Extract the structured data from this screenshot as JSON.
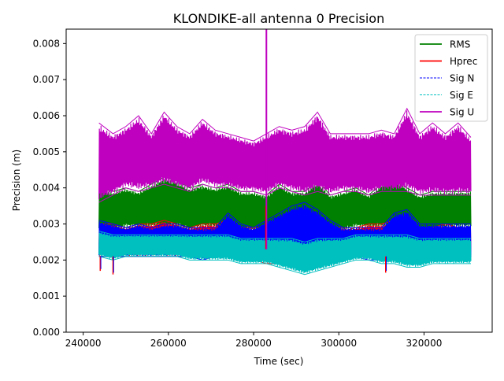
{
  "chart_data": {
    "type": "line",
    "title": "KLONDIKE-all antenna 0 Precision",
    "xlabel": "Time (sec)",
    "ylabel": "Precision (m)",
    "xlim": [
      236000,
      336000
    ],
    "ylim": [
      0,
      0.0084
    ],
    "xticks": [
      240000,
      260000,
      280000,
      300000,
      320000
    ],
    "xtick_labels": [
      "240000",
      "260000",
      "280000",
      "300000",
      "320000"
    ],
    "yticks": [
      0,
      0.001,
      0.002,
      0.003,
      0.004,
      0.005,
      0.006,
      0.007,
      0.008
    ],
    "ytick_labels": [
      "0.000",
      "0.001",
      "0.002",
      "0.003",
      "0.004",
      "0.005",
      "0.006",
      "0.007",
      "0.008"
    ],
    "grid": false,
    "legend_position": "top-right",
    "x": [
      243700,
      247000,
      250000,
      253000,
      256000,
      259000,
      262000,
      265000,
      268000,
      271000,
      274000,
      277000,
      280000,
      283000,
      286000,
      289000,
      292000,
      295000,
      298000,
      301000,
      304000,
      307000,
      310000,
      313000,
      316000,
      319000,
      322000,
      325000,
      328000,
      331000
    ],
    "series": [
      {
        "name": "RMS",
        "color": "#008000",
        "style": "solid",
        "upper": [
          0.004,
          0.0039,
          0.004,
          0.0039,
          0.0041,
          0.0043,
          0.0042,
          0.004,
          0.0041,
          0.004,
          0.0041,
          0.0039,
          0.0039,
          0.0038,
          0.0041,
          0.0039,
          0.0039,
          0.0042,
          0.0038,
          0.0039,
          0.004,
          0.0038,
          0.0041,
          0.0043,
          0.004,
          0.0038,
          0.0039,
          0.0039,
          0.0039,
          0.0039
        ],
        "lower": [
          0.0028,
          0.0028,
          0.0029,
          0.0029,
          0.0029,
          0.0029,
          0.0029,
          0.0028,
          0.0029,
          0.0029,
          0.0029,
          0.0028,
          0.0028,
          0.0028,
          0.0028,
          0.0028,
          0.0028,
          0.0028,
          0.0028,
          0.0028,
          0.0029,
          0.0029,
          0.0029,
          0.0029,
          0.0029,
          0.0028,
          0.0028,
          0.0029,
          0.0029,
          0.0029
        ]
      },
      {
        "name": "Hprec",
        "color": "#ff0000",
        "style": "solid",
        "upper": [
          0.003,
          0.003,
          0.0029,
          0.003,
          0.003,
          0.0031,
          0.003,
          0.0029,
          0.003,
          0.003,
          0.0031,
          0.0029,
          0.0029,
          0.0029,
          0.003,
          0.003,
          0.0029,
          0.003,
          0.0029,
          0.0029,
          0.0029,
          0.003,
          0.003,
          0.0031,
          0.003,
          0.0029,
          0.0029,
          0.003,
          0.0029,
          0.0029
        ],
        "lower": [
          0.0021,
          0.0021,
          0.0021,
          0.0021,
          0.0021,
          0.0021,
          0.0021,
          0.0021,
          0.0021,
          0.0021,
          0.0021,
          0.002,
          0.002,
          0.0019,
          0.0019,
          0.0019,
          0.0018,
          0.0019,
          0.0019,
          0.002,
          0.0021,
          0.0021,
          0.002,
          0.002,
          0.002,
          0.002,
          0.002,
          0.002,
          0.002,
          0.0021
        ]
      },
      {
        "name": "Sig N",
        "color": "#0000ff",
        "style": "dashed",
        "upper": [
          0.0031,
          0.003,
          0.0029,
          0.003,
          0.0029,
          0.003,
          0.003,
          0.0029,
          0.0029,
          0.0029,
          0.0033,
          0.003,
          0.0029,
          0.0031,
          0.0033,
          0.0035,
          0.0036,
          0.0034,
          0.0031,
          0.0029,
          0.0029,
          0.0029,
          0.0029,
          0.0033,
          0.0034,
          0.003,
          0.003,
          0.003,
          0.003,
          0.003
        ],
        "lower": [
          0.0021,
          0.0021,
          0.0021,
          0.0021,
          0.0021,
          0.0021,
          0.0021,
          0.0021,
          0.002,
          0.0021,
          0.0021,
          0.002,
          0.002,
          0.002,
          0.002,
          0.002,
          0.0019,
          0.002,
          0.002,
          0.002,
          0.0021,
          0.002,
          0.002,
          0.002,
          0.002,
          0.002,
          0.002,
          0.002,
          0.002,
          0.002
        ]
      },
      {
        "name": "Sig E",
        "color": "#00bfbf",
        "style": "dashed",
        "upper": [
          0.0028,
          0.0027,
          0.0027,
          0.0027,
          0.0027,
          0.0027,
          0.0027,
          0.0027,
          0.0027,
          0.0027,
          0.0027,
          0.0026,
          0.0026,
          0.0026,
          0.0026,
          0.0026,
          0.0025,
          0.0026,
          0.0026,
          0.0026,
          0.0027,
          0.0027,
          0.0027,
          0.0027,
          0.0027,
          0.0026,
          0.0026,
          0.0026,
          0.0026,
          0.0026
        ],
        "lower": [
          0.0021,
          0.002,
          0.0021,
          0.0021,
          0.0021,
          0.0021,
          0.0021,
          0.002,
          0.002,
          0.002,
          0.002,
          0.0019,
          0.0019,
          0.0019,
          0.0018,
          0.0017,
          0.0016,
          0.0017,
          0.0018,
          0.0019,
          0.002,
          0.002,
          0.0019,
          0.0019,
          0.0018,
          0.0018,
          0.0019,
          0.0019,
          0.0019,
          0.0019
        ]
      },
      {
        "name": "Sig U",
        "color": "#bf00bf",
        "style": "solid",
        "upper": [
          0.0058,
          0.0055,
          0.0057,
          0.006,
          0.0055,
          0.0061,
          0.0057,
          0.0055,
          0.0059,
          0.0056,
          0.0055,
          0.0054,
          0.0053,
          0.0055,
          0.0057,
          0.0056,
          0.0057,
          0.0061,
          0.0055,
          0.0055,
          0.0055,
          0.0055,
          0.0056,
          0.0055,
          0.0062,
          0.0055,
          0.0058,
          0.0055,
          0.0058,
          0.0054
        ],
        "lower": [
          0.0036,
          0.0038,
          0.004,
          0.0039,
          0.004,
          0.0041,
          0.004,
          0.0039,
          0.0041,
          0.004,
          0.004,
          0.0039,
          0.0039,
          0.0038,
          0.004,
          0.0039,
          0.0038,
          0.0039,
          0.0038,
          0.0039,
          0.0039,
          0.0038,
          0.0039,
          0.0039,
          0.0039,
          0.0038,
          0.0038,
          0.0038,
          0.0038,
          0.0038
        ]
      }
    ],
    "annotations": [
      {
        "label": "Sig U spike",
        "x": 283000,
        "y_low": 0.0023,
        "y_high": 0.0084
      },
      {
        "label": "dip",
        "x": 244000,
        "y": 0.0017
      },
      {
        "label": "dip",
        "x": 247000,
        "y": 0.0016
      },
      {
        "label": "dip",
        "x": 311000,
        "y": 0.00165
      }
    ]
  }
}
